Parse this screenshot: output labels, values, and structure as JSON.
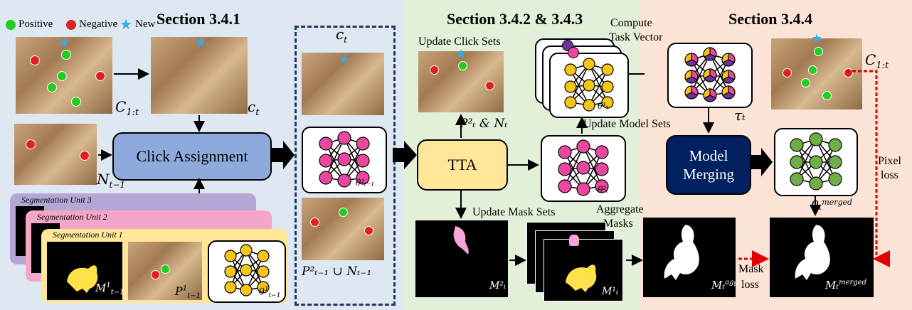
{
  "sections": {
    "s1": "Section 3.4.1",
    "s2": "Section 3.4.2 & 3.4.3",
    "s3": "Section 3.4.4"
  },
  "legend": {
    "positive": "Positive",
    "negative": "Negative",
    "new": "New"
  },
  "labels": {
    "c_1t_a": "C",
    "c_1t_sub": "1:t",
    "c_t": "c",
    "n_t_minus_1": "N",
    "click_assignment": "Click Assignment",
    "seg_unit_3": "Segmentation Unit 3",
    "seg_unit_2": "Segmentation Unit 2",
    "seg_unit_1": "Segmentation Unit 1",
    "m_t_minus_1": "M",
    "p_t_minus_1": "P",
    "theta_t_minus_1": "θ",
    "union": "P²ₜ₋₁ ∪ Nₜ₋₁",
    "theta2_t_minus_1": "θ²ₜ₋₁",
    "update_click_sets": "Update Click Sets",
    "pt2_and_nt": "P²ₜ & Nₜ",
    "tta": "TTA",
    "compute_task_vector_1": "Compute",
    "compute_task_vector_2": "Task Vector",
    "update_model_sets": "Update Model Sets",
    "theta1_t": "θ¹ₜ",
    "theta2_t": "θ²ₜ",
    "tau_t": "τₜ",
    "model_merging_1": "Model",
    "model_merging_2": "Merging",
    "theta_merged": "θₜ",
    "merged_sup": "merged",
    "update_mask_sets": "Update Mask Sets",
    "aggregate_1": "Aggregate",
    "aggregate_2": "Masks",
    "m2_t": "M²ₜ",
    "m1_t": "M¹ₜ",
    "m_agg": "Mₜ",
    "agg_sup": "agg",
    "m_merged": "Mₜ",
    "mask_loss_1": "Mask",
    "mask_loss_2": "loss",
    "pixel_loss_1": "Pixel",
    "pixel_loss_2": "loss",
    "c_t_top": "c",
    "c_t_top_sub": "t"
  },
  "colors": {
    "panel_blue": "#dde8f3",
    "panel_green": "#e2efd9",
    "panel_orange": "#fbe4d5",
    "click_box": "#8ea9db",
    "tta_box": "#ffe699",
    "merge_box": "#002060",
    "pink_node": "#e8489e",
    "yellow_node": "#f5c518",
    "green_node": "#70ad47",
    "seg3": "#b4a7d6",
    "seg2": "#f4a6c8",
    "seg1": "#ffe699",
    "positive": "#22cc22",
    "negative": "#e02020",
    "new": "#33aaee"
  }
}
